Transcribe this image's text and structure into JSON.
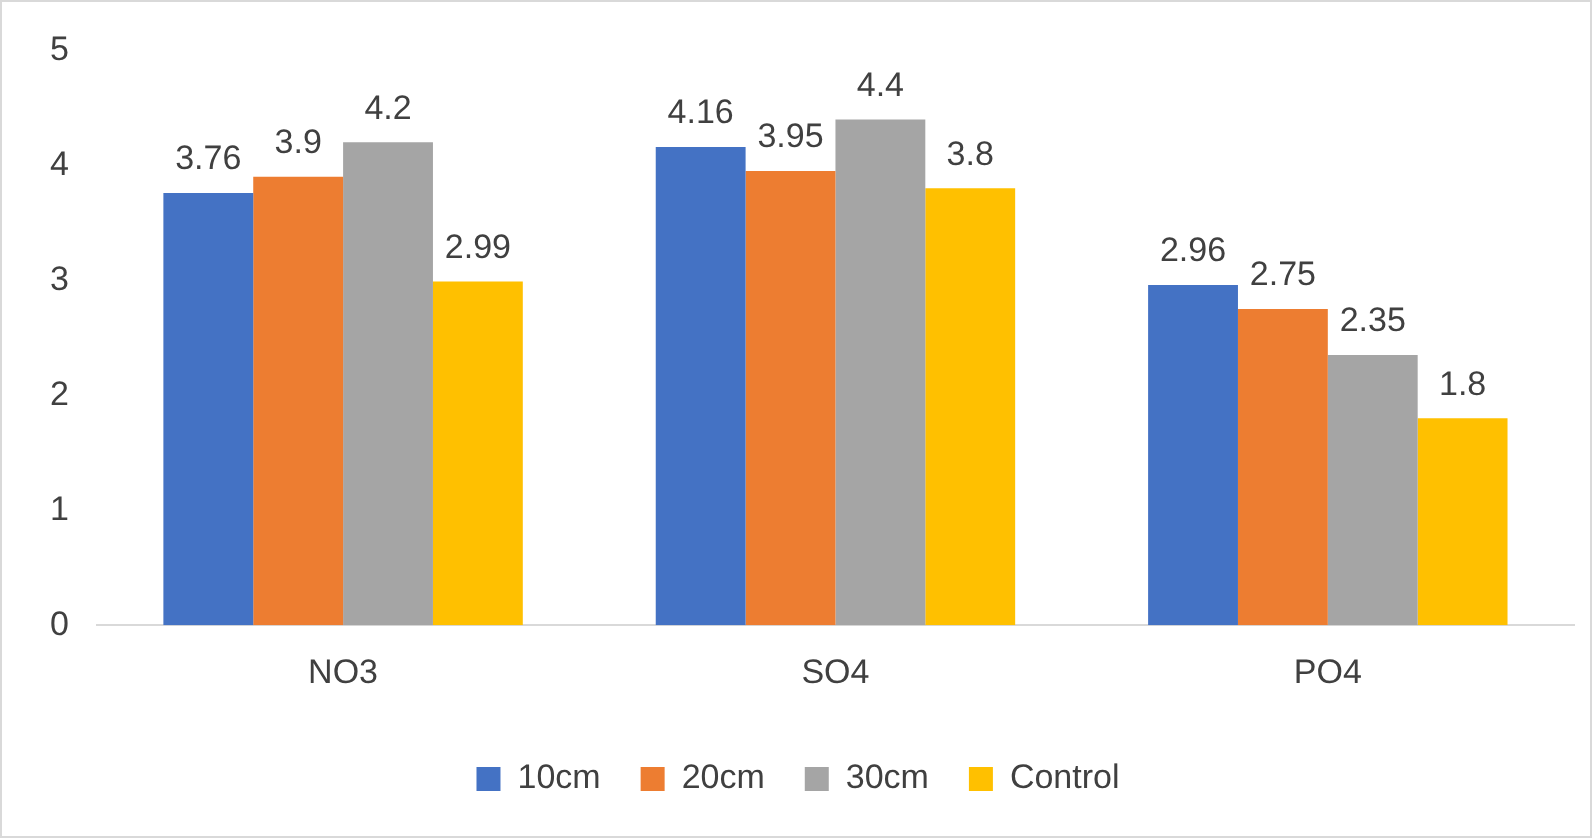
{
  "chart_data": {
    "type": "bar",
    "categories": [
      "NO3",
      "SO4",
      "PO4"
    ],
    "series": [
      {
        "name": "10cm",
        "color": "#4472c4",
        "values": [
          3.76,
          4.16,
          2.96
        ]
      },
      {
        "name": "20cm",
        "color": "#ed7d31",
        "values": [
          3.9,
          3.95,
          2.75
        ]
      },
      {
        "name": "30cm",
        "color": "#a5a5a5",
        "values": [
          4.2,
          4.4,
          2.35
        ]
      },
      {
        "name": "Control",
        "color": "#ffc000",
        "values": [
          2.99,
          3.8,
          1.8
        ]
      }
    ],
    "ylim": [
      0,
      5
    ],
    "yticks": [
      0,
      1,
      2,
      3,
      4,
      5
    ],
    "grid": false,
    "legend": "bottom",
    "data_labels": true
  }
}
